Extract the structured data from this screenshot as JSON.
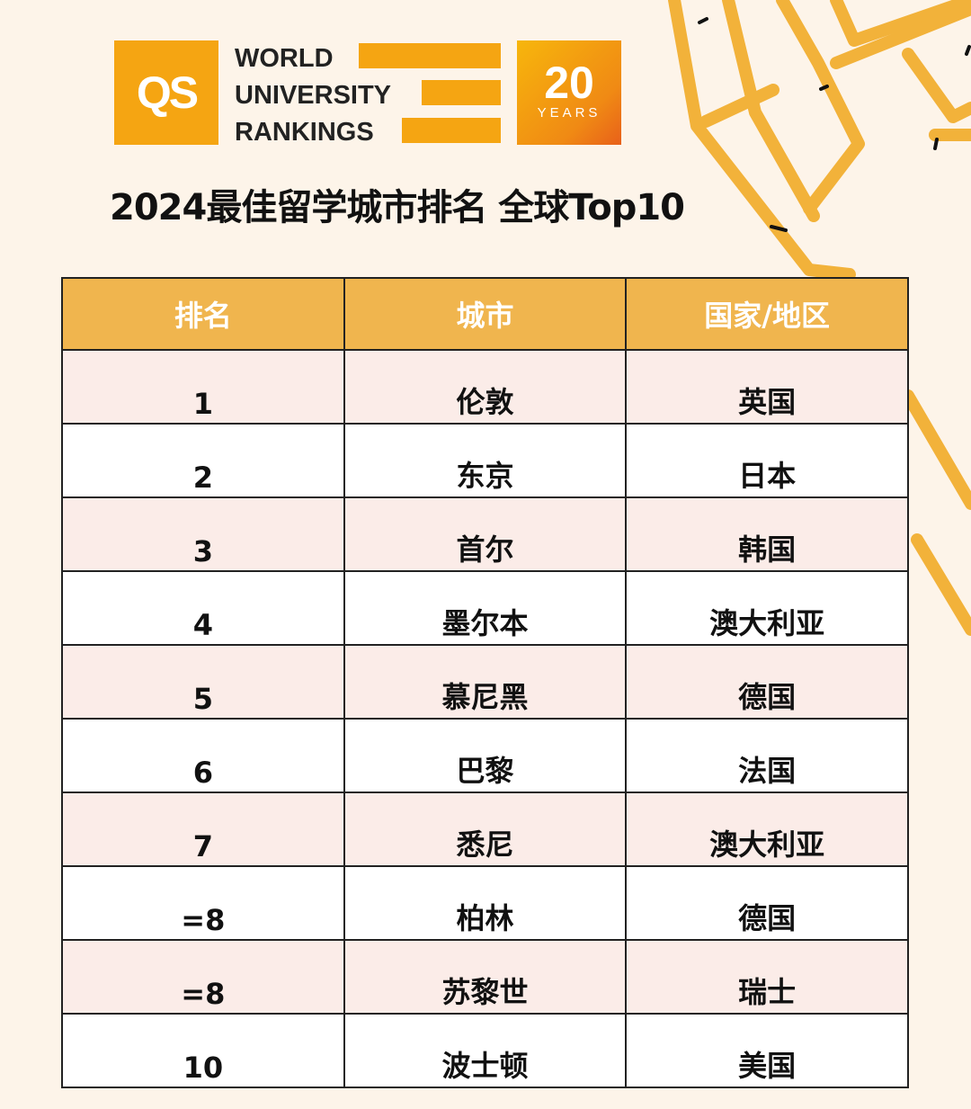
{
  "logo": {
    "qs": "QS",
    "line1": "WORLD",
    "line2": "UNIVERSITY",
    "line3": "RANKINGS",
    "anniv_number": "20",
    "anniv_label": "YEARS",
    "brand_color": "#f5a512"
  },
  "title": "2024最佳留学城市排名 全球Top10",
  "table": {
    "headers": [
      "排名",
      "城市",
      "国家/地区"
    ],
    "rows": [
      [
        "1",
        "伦敦",
        "英国"
      ],
      [
        "2",
        "东京",
        "日本"
      ],
      [
        "3",
        "首尔",
        "韩国"
      ],
      [
        "4",
        "墨尔本",
        "澳大利亚"
      ],
      [
        "5",
        "慕尼黑",
        "德国"
      ],
      [
        "6",
        "巴黎",
        "法国"
      ],
      [
        "7",
        "悉尼",
        "澳大利亚"
      ],
      [
        "=8",
        "柏林",
        "德国"
      ],
      [
        "=8",
        "苏黎世",
        "瑞士"
      ],
      [
        "10",
        "波士顿",
        "美国"
      ]
    ],
    "header_color": "#f0b54e",
    "stripe_color": "#fbece8"
  }
}
